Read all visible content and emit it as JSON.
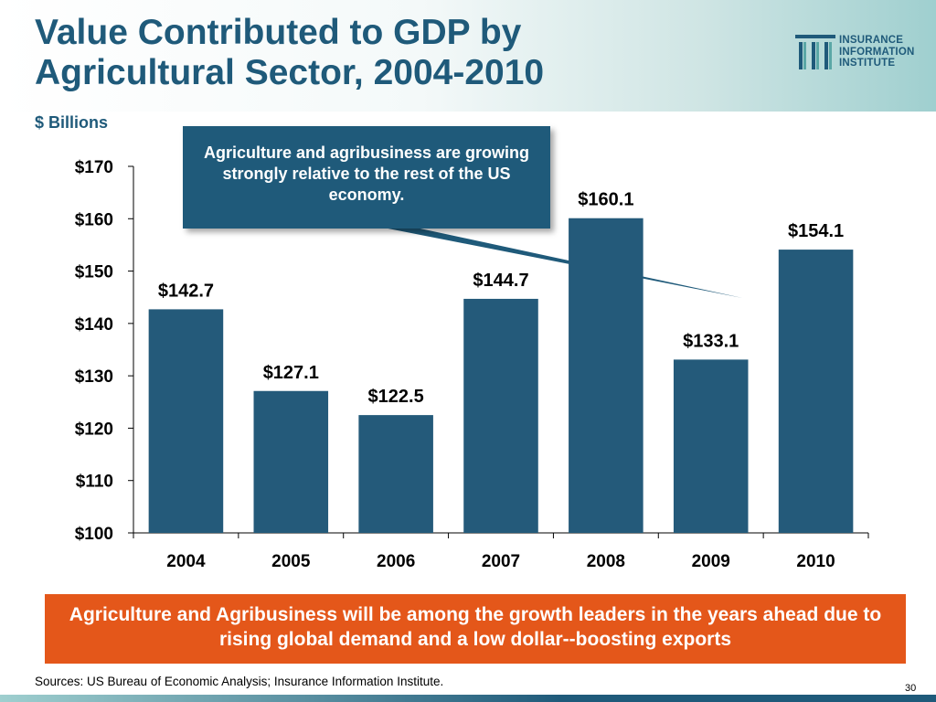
{
  "slide": {
    "title": "Value Contributed to GDP by Agricultural Sector, 2004-2010",
    "unit_label": "$ Billions",
    "callout": "Agriculture and agribusiness are growing strongly relative to the rest of the US economy.",
    "banner": "Agriculture and Agribusiness will be among the growth leaders in the years ahead due to rising global demand and a low dollar--boosting exports",
    "sources": "Sources: US Bureau of  Economic Analysis; Insurance Information Institute.",
    "page_number": "30"
  },
  "logo": {
    "line1": "INSURANCE",
    "line2": "INFORMATION",
    "line3": "INSTITUTE",
    "icon": "iii-logo-icon"
  },
  "colors": {
    "primary": "#1f5a7a",
    "bar": "#245a7a",
    "banner": "#e4571a"
  },
  "chart_data": {
    "type": "bar",
    "categories": [
      "2004",
      "2005",
      "2006",
      "2007",
      "2008",
      "2009",
      "2010"
    ],
    "values": [
      142.7,
      127.1,
      122.5,
      144.7,
      160.1,
      133.1,
      154.1
    ],
    "data_labels": [
      "$142.7",
      "$127.1",
      "$122.5",
      "$144.7",
      "$160.1",
      "$133.1",
      "$154.1"
    ],
    "yticks": [
      100,
      110,
      120,
      130,
      140,
      150,
      160,
      170
    ],
    "ytick_labels": [
      "$100",
      "$110",
      "$120",
      "$130",
      "$140",
      "$150",
      "$160",
      "$170"
    ],
    "ylim": [
      100,
      170
    ],
    "title": "",
    "xlabel": "",
    "ylabel": "$ Billions",
    "grid": false,
    "legend": "none"
  }
}
